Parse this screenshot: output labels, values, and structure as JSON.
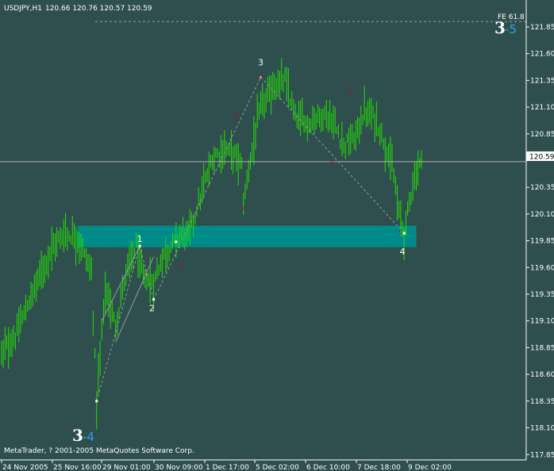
{
  "chart_data": {
    "type": "candlestick",
    "title": "USDJPY,H1",
    "ohlc_header": "120.66 120.76 120.57 120.59",
    "current_price": 120.59,
    "current_price_label": "120.59",
    "y_ticks": [
      "121.85",
      "121.60",
      "121.35",
      "121.10",
      "120.85",
      "120.59",
      "120.35",
      "120.10",
      "119.85",
      "119.60",
      "119.35",
      "119.10",
      "118.85",
      "118.60",
      "118.35",
      "118.10",
      "117.85"
    ],
    "y_tick_values": [
      121.85,
      121.6,
      121.35,
      121.1,
      120.85,
      120.6,
      120.35,
      120.1,
      119.85,
      119.6,
      119.35,
      119.1,
      118.85,
      118.6,
      118.35,
      118.1,
      117.85
    ],
    "ylim": [
      117.8,
      122.05
    ],
    "x_ticks": [
      "24 Nov 2005",
      "25 Nov 16:00",
      "29 Nov 01:00",
      "30 Nov 09:00",
      "1 Dec 17:00",
      "5 Dec 02:00",
      "6 Dec 10:00",
      "7 Dec 18:00",
      "9 Dec 02:00"
    ],
    "bar_count": 244,
    "waypoints": [
      [
        0,
        118.8
      ],
      [
        8,
        118.95
      ],
      [
        20,
        119.45
      ],
      [
        28,
        119.75
      ],
      [
        36,
        119.92
      ],
      [
        44,
        119.88
      ],
      [
        52,
        119.55
      ],
      [
        55,
        118.35
      ],
      [
        60,
        119.4
      ],
      [
        66,
        119.05
      ],
      [
        72,
        119.55
      ],
      [
        78,
        119.8
      ],
      [
        82,
        119.5
      ],
      [
        88,
        119.45
      ],
      [
        93,
        119.7
      ],
      [
        98,
        119.8
      ],
      [
        104,
        119.92
      ],
      [
        108,
        119.9
      ],
      [
        116,
        120.3
      ],
      [
        122,
        120.62
      ],
      [
        128,
        120.7
      ],
      [
        134,
        120.68
      ],
      [
        139,
        120.55
      ],
      [
        140,
        120.2
      ],
      [
        144,
        120.62
      ],
      [
        150,
        121.1
      ],
      [
        158,
        121.3
      ],
      [
        164,
        121.35
      ],
      [
        170,
        121.0
      ],
      [
        178,
        120.95
      ],
      [
        186,
        121.05
      ],
      [
        192,
        120.95
      ],
      [
        198,
        120.75
      ],
      [
        204,
        120.8
      ],
      [
        210,
        121.05
      ],
      [
        216,
        121.0
      ],
      [
        222,
        120.75
      ],
      [
        226,
        120.55
      ],
      [
        230,
        120.1
      ],
      [
        233,
        119.92
      ],
      [
        238,
        120.4
      ],
      [
        244,
        120.65
      ]
    ],
    "wave_labels": [
      {
        "text": "1",
        "bar": 80,
        "price": 119.87
      },
      {
        "text": "2",
        "bar": 87,
        "price": 119.22
      },
      {
        "text": "3",
        "bar": 150,
        "price": 121.52
      },
      {
        "text": "4",
        "bar": 232,
        "price": 119.75
      }
    ],
    "reversal_markers": [
      {
        "text": "c",
        "bar": 231,
        "price": 119.94
      },
      {
        "text": "a",
        "bar": 150,
        "price": 121.39
      },
      {
        "text": "b",
        "bar": 136,
        "price": 121.02
      },
      {
        "text": "b",
        "bar": 202,
        "price": 121.24
      },
      {
        "text": "a",
        "bar": 140,
        "price": 120.16
      },
      {
        "text": "a",
        "bar": 191,
        "price": 120.58
      },
      {
        "text": "a",
        "bar": 104,
        "price": 119.62
      }
    ],
    "zone": {
      "price_top": 119.99,
      "price_bottom": 119.79,
      "bar_start": 44,
      "bar_end": 240
    },
    "fe_level": {
      "label": "FE 61.8",
      "price": 121.9
    },
    "wave_badge_top": {
      "main": "3",
      "sub": "-5"
    },
    "wave_badge_bottom": {
      "main": "3",
      "sub": "-4"
    },
    "copyright": "MetaTrader, ? 2001-2005 MetaQuotes Software Corp.",
    "colors": {
      "background": "#2f4f4f",
      "bars": "#22e000",
      "zone": "#008b8b",
      "axis": "#ffffff",
      "price_line": "#b0b0b0",
      "markers": "#a01818",
      "badge_sub": "#27a4e0"
    }
  }
}
